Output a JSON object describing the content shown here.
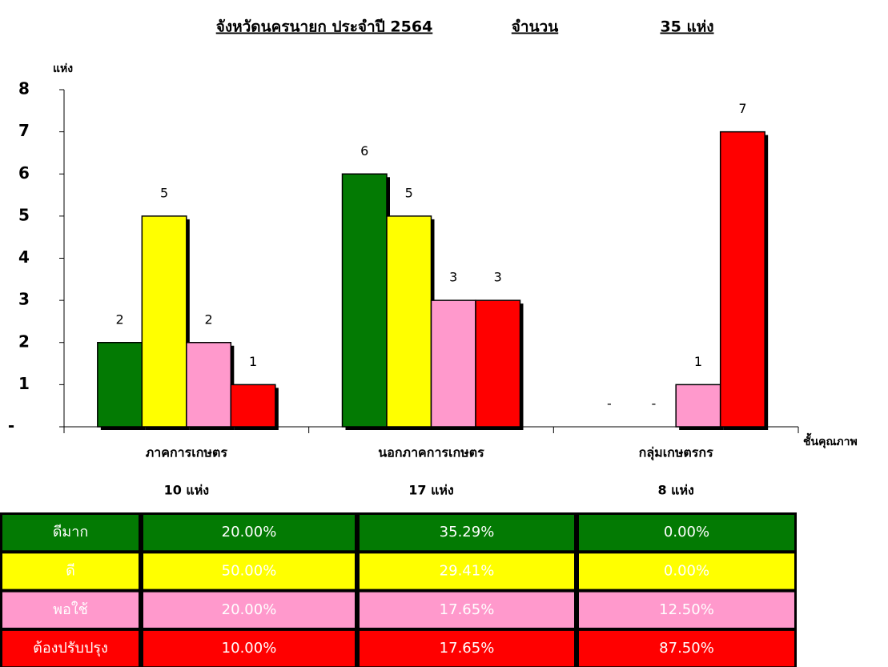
{
  "chart_data": {
    "type": "bar",
    "title": "จังหวัดนครนายก ประจำปี 2564",
    "subtitle": "จำนวน",
    "total": "35 แห่ง",
    "y_label": "แห่ง",
    "x_label": "ชั้นคุณภาพ",
    "categories": [
      "ภาคการเกษตร",
      "นอกภาคการเกษตร",
      "กลุ่มเกษตรกร"
    ],
    "category_totals": [
      "10  แห่ง",
      "17  แห่ง",
      "8  แห่ง"
    ],
    "series": [
      {
        "name": "ดีมาก",
        "color": "#037a03",
        "values": [
          2,
          6,
          0
        ],
        "value_labels": [
          "2",
          "6",
          "-"
        ]
      },
      {
        "name": "ดี",
        "color": "#ffff00",
        "values": [
          5,
          5,
          0
        ],
        "value_labels": [
          "5",
          "5",
          "-"
        ]
      },
      {
        "name": "พอใช้",
        "color": "#ff99cc",
        "values": [
          2,
          3,
          1
        ]
      },
      {
        "name": "ต้องปรับปรุง",
        "color": "#ff0000",
        "values": [
          1,
          3,
          7
        ]
      }
    ],
    "ylim": [
      0,
      8
    ],
    "yticks": [
      {
        "value": 0,
        "label": "-"
      },
      1,
      2,
      3,
      4,
      5,
      6,
      7,
      8
    ]
  },
  "table": {
    "rows": [
      [
        "ดีมาก",
        "20.00%",
        "35.29%",
        "0.00%"
      ],
      [
        "ดี",
        "50.00%",
        "29.41%",
        "0.00%"
      ],
      [
        "พอใช้",
        "20.00%",
        "17.65%",
        "12.50%"
      ],
      [
        "ต้องปรับปรุง",
        "10.00%",
        "17.65%",
        "87.50%"
      ]
    ]
  }
}
